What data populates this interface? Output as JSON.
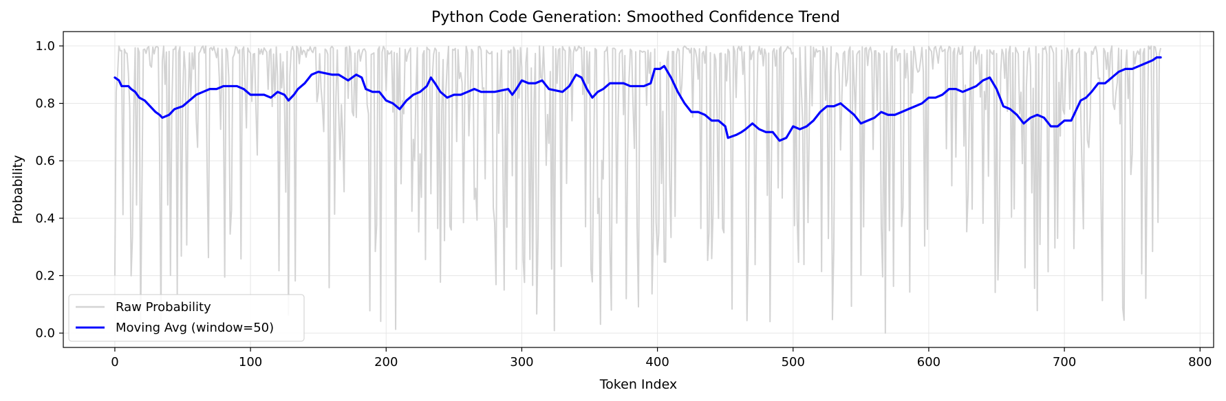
{
  "chart_data": {
    "type": "line",
    "title": "Python Code Generation: Smoothed Confidence Trend",
    "xlabel": "Token Index",
    "ylabel": "Probability",
    "xlim": [
      -38,
      810
    ],
    "ylim": [
      -0.05,
      1.05
    ],
    "xticks": [
      0,
      100,
      200,
      300,
      400,
      500,
      600,
      700,
      800
    ],
    "yticks": [
      0.0,
      0.2,
      0.4,
      0.6,
      0.8,
      1.0
    ],
    "grid": true,
    "legend_position": "lower-left",
    "series": [
      {
        "name": "Raw Probability",
        "color": "#d3d3d3",
        "n_points": 772,
        "x_range": [
          0,
          771
        ],
        "values_note": "Per-token probabilities are mostly near 1.0 with frequent sharp dips toward 0.0"
      },
      {
        "name": "Moving Avg (window=50)",
        "color": "#0000ff",
        "points": [
          [
            0,
            0.89
          ],
          [
            3,
            0.88
          ],
          [
            5,
            0.86
          ],
          [
            10,
            0.86
          ],
          [
            12,
            0.85
          ],
          [
            15,
            0.84
          ],
          [
            18,
            0.82
          ],
          [
            22,
            0.81
          ],
          [
            26,
            0.79
          ],
          [
            30,
            0.77
          ],
          [
            33,
            0.76
          ],
          [
            35,
            0.75
          ],
          [
            40,
            0.76
          ],
          [
            44,
            0.78
          ],
          [
            50,
            0.79
          ],
          [
            55,
            0.81
          ],
          [
            60,
            0.83
          ],
          [
            65,
            0.84
          ],
          [
            70,
            0.85
          ],
          [
            75,
            0.85
          ],
          [
            80,
            0.86
          ],
          [
            85,
            0.86
          ],
          [
            90,
            0.86
          ],
          [
            95,
            0.85
          ],
          [
            100,
            0.83
          ],
          [
            105,
            0.83
          ],
          [
            110,
            0.83
          ],
          [
            115,
            0.82
          ],
          [
            120,
            0.84
          ],
          [
            125,
            0.83
          ],
          [
            128,
            0.81
          ],
          [
            132,
            0.83
          ],
          [
            135,
            0.85
          ],
          [
            140,
            0.87
          ],
          [
            145,
            0.9
          ],
          [
            150,
            0.91
          ],
          [
            160,
            0.9
          ],
          [
            165,
            0.9
          ],
          [
            172,
            0.88
          ],
          [
            178,
            0.9
          ],
          [
            182,
            0.89
          ],
          [
            185,
            0.85
          ],
          [
            190,
            0.84
          ],
          [
            195,
            0.84
          ],
          [
            200,
            0.81
          ],
          [
            205,
            0.8
          ],
          [
            210,
            0.78
          ],
          [
            215,
            0.81
          ],
          [
            220,
            0.83
          ],
          [
            225,
            0.84
          ],
          [
            230,
            0.86
          ],
          [
            233,
            0.89
          ],
          [
            236,
            0.87
          ],
          [
            240,
            0.84
          ],
          [
            245,
            0.82
          ],
          [
            250,
            0.83
          ],
          [
            255,
            0.83
          ],
          [
            260,
            0.84
          ],
          [
            265,
            0.85
          ],
          [
            270,
            0.84
          ],
          [
            280,
            0.84
          ],
          [
            290,
            0.85
          ],
          [
            293,
            0.83
          ],
          [
            296,
            0.85
          ],
          [
            300,
            0.88
          ],
          [
            305,
            0.87
          ],
          [
            310,
            0.87
          ],
          [
            315,
            0.88
          ],
          [
            320,
            0.85
          ],
          [
            330,
            0.84
          ],
          [
            335,
            0.86
          ],
          [
            340,
            0.9
          ],
          [
            344,
            0.89
          ],
          [
            348,
            0.85
          ],
          [
            352,
            0.82
          ],
          [
            356,
            0.84
          ],
          [
            360,
            0.85
          ],
          [
            365,
            0.87
          ],
          [
            370,
            0.87
          ],
          [
            375,
            0.87
          ],
          [
            380,
            0.86
          ],
          [
            390,
            0.86
          ],
          [
            395,
            0.87
          ],
          [
            398,
            0.92
          ],
          [
            402,
            0.92
          ],
          [
            405,
            0.93
          ],
          [
            410,
            0.89
          ],
          [
            415,
            0.84
          ],
          [
            420,
            0.8
          ],
          [
            425,
            0.77
          ],
          [
            430,
            0.77
          ],
          [
            435,
            0.76
          ],
          [
            440,
            0.74
          ],
          [
            445,
            0.74
          ],
          [
            450,
            0.72
          ],
          [
            452,
            0.68
          ],
          [
            458,
            0.69
          ],
          [
            462,
            0.7
          ],
          [
            465,
            0.71
          ],
          [
            470,
            0.73
          ],
          [
            475,
            0.71
          ],
          [
            480,
            0.7
          ],
          [
            485,
            0.7
          ],
          [
            490,
            0.67
          ],
          [
            495,
            0.68
          ],
          [
            500,
            0.72
          ],
          [
            505,
            0.71
          ],
          [
            510,
            0.72
          ],
          [
            515,
            0.74
          ],
          [
            520,
            0.77
          ],
          [
            525,
            0.79
          ],
          [
            530,
            0.79
          ],
          [
            535,
            0.8
          ],
          [
            540,
            0.78
          ],
          [
            545,
            0.76
          ],
          [
            550,
            0.73
          ],
          [
            555,
            0.74
          ],
          [
            560,
            0.75
          ],
          [
            565,
            0.77
          ],
          [
            570,
            0.76
          ],
          [
            575,
            0.76
          ],
          [
            580,
            0.77
          ],
          [
            585,
            0.78
          ],
          [
            590,
            0.79
          ],
          [
            595,
            0.8
          ],
          [
            600,
            0.82
          ],
          [
            605,
            0.82
          ],
          [
            610,
            0.83
          ],
          [
            615,
            0.85
          ],
          [
            620,
            0.85
          ],
          [
            625,
            0.84
          ],
          [
            630,
            0.85
          ],
          [
            635,
            0.86
          ],
          [
            640,
            0.88
          ],
          [
            645,
            0.89
          ],
          [
            650,
            0.85
          ],
          [
            655,
            0.79
          ],
          [
            660,
            0.78
          ],
          [
            665,
            0.76
          ],
          [
            670,
            0.73
          ],
          [
            675,
            0.75
          ],
          [
            680,
            0.76
          ],
          [
            685,
            0.75
          ],
          [
            690,
            0.72
          ],
          [
            695,
            0.72
          ],
          [
            700,
            0.74
          ],
          [
            705,
            0.74
          ],
          [
            708,
            0.77
          ],
          [
            712,
            0.81
          ],
          [
            716,
            0.82
          ],
          [
            720,
            0.84
          ],
          [
            725,
            0.87
          ],
          [
            730,
            0.87
          ],
          [
            735,
            0.89
          ],
          [
            740,
            0.91
          ],
          [
            745,
            0.92
          ],
          [
            750,
            0.92
          ],
          [
            755,
            0.93
          ],
          [
            760,
            0.94
          ],
          [
            765,
            0.95
          ],
          [
            768,
            0.96
          ],
          [
            771,
            0.96
          ]
        ]
      }
    ]
  }
}
